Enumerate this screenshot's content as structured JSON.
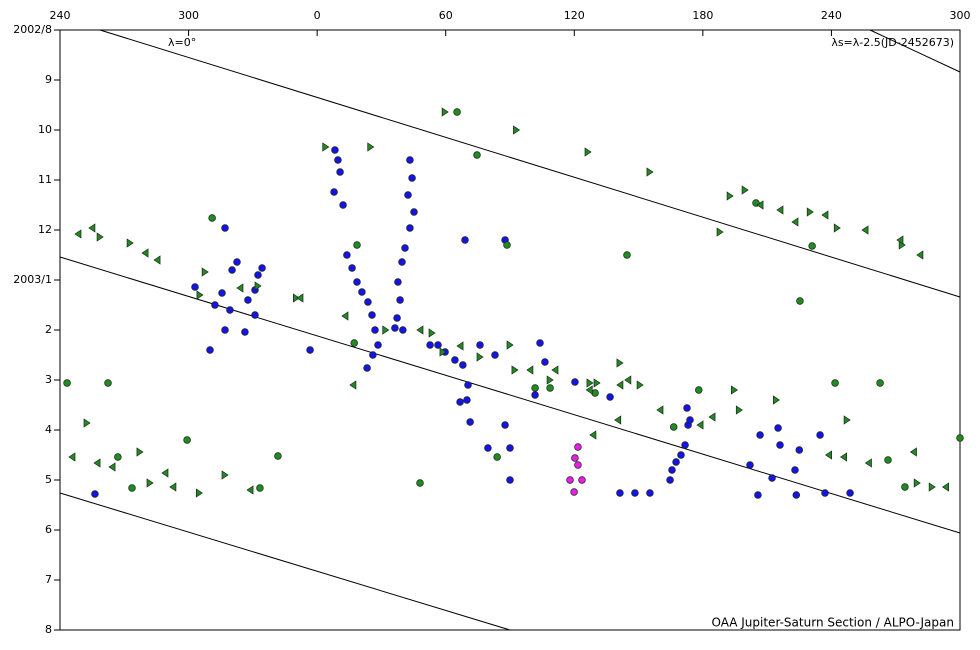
{
  "chart_data": {
    "type": "scatter",
    "annotations": [
      "λ=0°",
      "λs=λ-2.5(JD-2452673)",
      "OAA Jupiter-Saturn Section / ALPO-Japan"
    ],
    "xlim": [
      240,
      660
    ],
    "xticks": [
      240,
      300,
      {
        "value": 360,
        "label": "0"
      },
      {
        "value": 420,
        "label": "60"
      },
      {
        "value": 480,
        "label": "120"
      },
      {
        "value": 540,
        "label": "180"
      },
      {
        "value": 600,
        "label": "240"
      },
      {
        "value": 660,
        "label": "300"
      }
    ],
    "ylim": [
      0,
      12
    ],
    "y_reversed": true,
    "yticks": [
      {
        "value": 0,
        "label": "2002/8"
      },
      {
        "value": 1,
        "label": "9"
      },
      {
        "value": 2,
        "label": "10"
      },
      {
        "value": 3,
        "label": "11"
      },
      {
        "value": 4,
        "label": "12"
      },
      {
        "value": 5,
        "label": "2003/1"
      },
      {
        "value": 6,
        "label": "2"
      },
      {
        "value": 7,
        "label": "3"
      },
      {
        "value": 8,
        "label": "4"
      },
      {
        "value": 9,
        "label": "5"
      },
      {
        "value": 10,
        "label": "6"
      },
      {
        "value": 11,
        "label": "7"
      },
      {
        "value": 12,
        "label": "8"
      }
    ],
    "series": [
      {
        "marker": "circle",
        "color": "#1414e6",
        "x": [
          303,
          310,
          312.3,
          315.6,
          317,
          320.3,
          322.6,
          319.3,
          326.3,
          327.7,
          331,
          332.4,
          334.3,
          331,
          317,
          256.3,
          368.3,
          369.7,
          370.7,
          367.9,
          372.1,
          373.9,
          376.3,
          378.6,
          380.9,
          383.7,
          385.6,
          387,
          388.4,
          386,
          383.3,
          403.3,
          404.3,
          402.4,
          405.2,
          403.3,
          401,
          399.6,
          397.7,
          398.7,
          397.3,
          396.3,
          400,
          356.7,
          429,
          447.7,
          412.7,
          416.4,
          419.7,
          424.3,
          428,
          430.4,
          429.9,
          426.7,
          431.4,
          436,
          443,
          447.7,
          450,
          439.7,
          450,
          464,
          466.3,
          461.7,
          480.3,
          496.7,
          501.3,
          508.3,
          515.3,
          524.7,
          525.6,
          527.5,
          529.8,
          531.7,
          533.1,
          532.6,
          534,
          562,
          565.7,
          566.7,
          572.3,
          575.1,
          576,
          583,
          585,
          583.6,
          594.7,
          597,
          608.7
        ],
        "y": [
          5.14,
          6.4,
          5.5,
          5.26,
          6.0,
          4.8,
          4.64,
          5.6,
          6.04,
          5.4,
          5.2,
          4.9,
          4.76,
          5.7,
          3.96,
          9.28,
          2.4,
          2.6,
          2.84,
          3.24,
          3.5,
          4.5,
          4.76,
          5.04,
          5.24,
          5.44,
          5.7,
          6.0,
          6.3,
          6.5,
          6.76,
          2.6,
          2.96,
          3.3,
          3.64,
          3.96,
          4.36,
          4.64,
          5.04,
          5.4,
          5.76,
          5.96,
          6.0,
          6.4,
          4.2,
          4.2,
          6.3,
          6.3,
          6.44,
          6.6,
          6.7,
          7.1,
          7.4,
          7.44,
          7.84,
          6.3,
          6.5,
          7.9,
          8.36,
          8.36,
          9.0,
          6.26,
          6.64,
          7.3,
          7.04,
          7.34,
          9.26,
          9.26,
          9.26,
          9.0,
          8.8,
          8.64,
          8.5,
          8.3,
          7.9,
          7.56,
          7.8,
          8.7,
          9.3,
          8.1,
          8.96,
          7.96,
          8.3,
          8.8,
          8.4,
          9.3,
          8.1,
          9.26,
          9.26
        ]
      },
      {
        "marker": "circle",
        "color": "#e61ee6",
        "x": [
          481.7,
          480.3,
          481.7,
          483.6,
          479.9,
          478
        ],
        "y": [
          8.34,
          8.56,
          8.7,
          9.0,
          9.24,
          9.0
        ]
      },
      {
        "marker": "circle",
        "color": "#1e8c1e",
        "x": [
          243.3,
          262.4,
          299.3,
          311,
          267,
          273.6,
          333.3,
          341.7,
          425.3,
          434.6,
          378.6,
          448.6,
          504.6,
          564.8,
          591,
          585.3,
          601.7,
          622.7,
          660,
          626.4,
          634.3,
          408,
          444,
          461.7,
          468.7,
          489.7,
          526.4,
          538.1,
          377.3
        ],
        "y": [
          7.06,
          7.06,
          8.2,
          3.76,
          8.54,
          9.16,
          9.16,
          8.52,
          1.64,
          2.5,
          4.3,
          4.3,
          4.5,
          3.46,
          4.32,
          5.42,
          7.06,
          7.06,
          8.16,
          8.6,
          9.14,
          9.06,
          8.54,
          7.16,
          7.16,
          7.26,
          7.94,
          7.2,
          6.26
        ]
      },
      {
        "marker": "triangle-right",
        "color": "#1e8c1e",
        "x": [
          252.6,
          258.7,
          272.7,
          305.3,
          307.7,
          332.4,
          350.3,
          364,
          385,
          392,
          413.6,
          418.7,
          436,
          450,
          452.3,
          468.7,
          487.3,
          490.6,
          501.3,
          510.7,
          548,
          552.7,
          559.7,
          554.7,
          557,
          574.3,
          590.1,
          602.7,
          633,
          640,
          647,
          607.3,
          277.3,
          282,
          317,
          305,
          486.4,
          453,
          419.7,
          515.3
        ],
        "y": [
          7.86,
          4.14,
          4.26,
          5.3,
          4.84,
          5.12,
          5.36,
          2.34,
          2.34,
          6.0,
          6.06,
          6.44,
          6.54,
          6.3,
          6.8,
          7.0,
          7.06,
          7.06,
          6.66,
          7.1,
          4.04,
          3.32,
          3.2,
          7.2,
          7.6,
          7.4,
          3.64,
          3.96,
          4.3,
          9.06,
          9.14,
          7.8,
          8.44,
          9.06,
          8.9,
          9.26,
          2.44,
          2.0,
          1.64,
          2.84
        ]
      },
      {
        "marker": "triangle-left",
        "color": "#1e8c1e",
        "x": [
          248.4,
          254.9,
          279.7,
          285.3,
          328.7,
          245.6,
          257.3,
          264.3,
          289,
          292.7,
          324,
          352,
          373,
          376.7,
          408,
          426.7,
          471,
          487,
          501.3,
          505,
          520,
          544.3,
          538.7,
          566.7,
          576,
          583,
          597,
          615.7,
          632,
          641.3,
          598.7,
          605.7,
          617.3,
          638.3,
          653.3,
          488.7,
          500.3,
          459.3
        ],
        "y": [
          4.08,
          3.96,
          4.46,
          4.6,
          9.2,
          8.54,
          8.66,
          8.74,
          8.86,
          9.14,
          5.16,
          5.36,
          5.72,
          7.1,
          6.0,
          6.32,
          6.8,
          7.2,
          7.1,
          7.0,
          7.6,
          7.74,
          7.9,
          3.5,
          3.6,
          3.84,
          3.7,
          4.0,
          4.2,
          4.5,
          8.5,
          8.54,
          8.66,
          8.44,
          9.14,
          8.1,
          7.8,
          6.8
        ]
      }
    ]
  }
}
